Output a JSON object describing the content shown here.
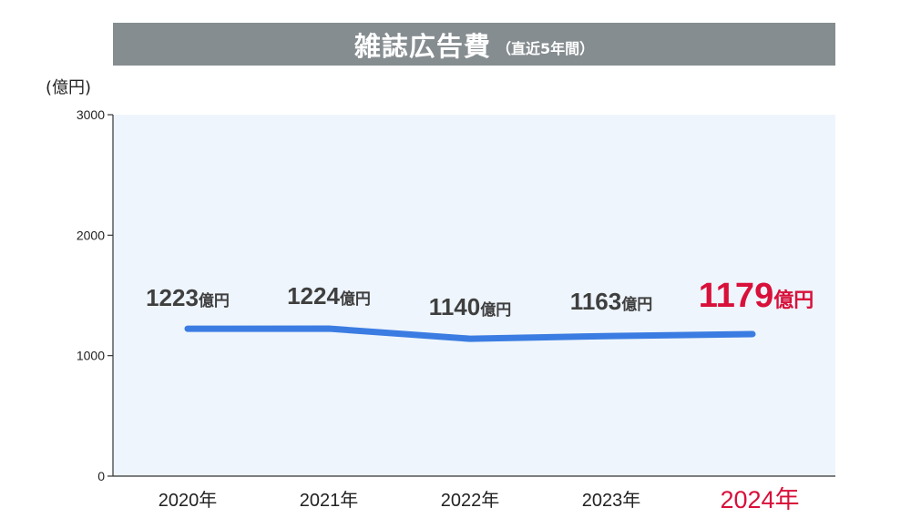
{
  "title": {
    "main": "雑誌広告費",
    "sub": "（直近5年間）"
  },
  "y_unit_label": "(億円)",
  "colors": {
    "title_bg": "#868d90",
    "plot_bg": "#eef5fc",
    "line": "#3b7ce2",
    "label_text": "#3f3f3f",
    "highlight": "#d8103a"
  },
  "chart_data": {
    "type": "line",
    "categories": [
      "2020年",
      "2021年",
      "2022年",
      "2023年",
      "2024年"
    ],
    "series": [
      {
        "values": [
          1223,
          1224,
          1140,
          1163,
          1179
        ]
      }
    ],
    "data_labels": [
      {
        "number": "1223",
        "unit": "億円"
      },
      {
        "number": "1224",
        "unit": "億円"
      },
      {
        "number": "1140",
        "unit": "億円"
      },
      {
        "number": "1163",
        "unit": "億円"
      },
      {
        "number": "1179",
        "unit": "億円"
      }
    ],
    "highlight_index": 4,
    "y_ticks": [
      "0",
      "1000",
      "2000",
      "3000"
    ],
    "ylim": [
      0,
      3000
    ],
    "grid": false
  }
}
